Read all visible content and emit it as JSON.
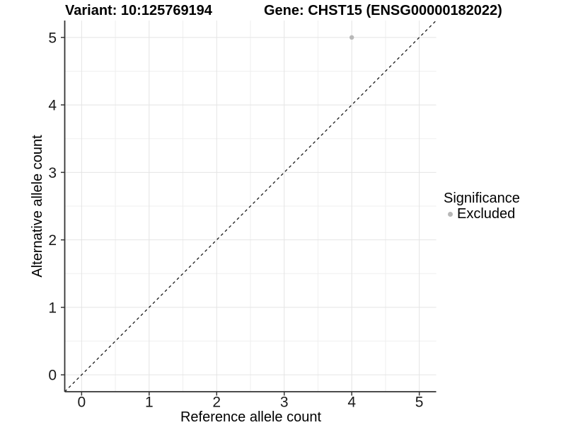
{
  "chart_data": {
    "type": "scatter",
    "title_left": "Variant: 10:125769194",
    "title_right": "Gene: CHST15 (ENSG00000182022)",
    "xlabel": "Reference allele count",
    "ylabel": "Alternative allele count",
    "xlim": [
      -0.25,
      5.25
    ],
    "ylim": [
      -0.25,
      5.25
    ],
    "x_ticks": [
      0,
      1,
      2,
      3,
      4,
      5
    ],
    "y_ticks": [
      0,
      1,
      2,
      3,
      4,
      5
    ],
    "grid": "major and minor, light gray, on white background",
    "series": [
      {
        "name": "Excluded",
        "color": "#b8b8b8",
        "points": [
          {
            "x": 4,
            "y": 5
          }
        ]
      }
    ],
    "reference_line": {
      "style": "dashed",
      "color": "#1a1a1a",
      "from": [
        -0.25,
        -0.25
      ],
      "to": [
        5.25,
        5.25
      ],
      "meaning": "identity line y = x"
    },
    "legend": {
      "title": "Significance",
      "position": "right",
      "entries": [
        "Excluded"
      ]
    }
  },
  "colors": {
    "background": "#ffffff",
    "axis_line": "#333333",
    "tick_text": "#1a1a1a",
    "grid_major": "#e4e4e4",
    "grid_minor": "#efefef",
    "point": "#b8b8b8"
  }
}
